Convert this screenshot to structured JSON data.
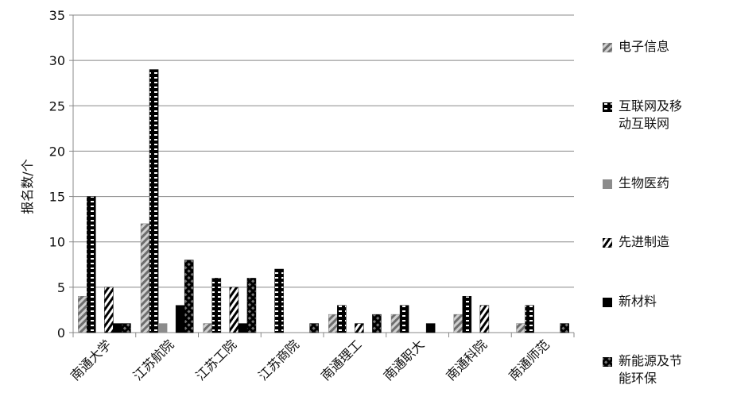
{
  "chart_data": {
    "type": "bar",
    "y_label": "报名数/个",
    "categories": [
      "南通大学",
      "江苏航院",
      "江苏工院",
      "江苏商院",
      "南通理工",
      "南通职大",
      "南通科院",
      "南通师范"
    ],
    "series": [
      {
        "name": "电子信息",
        "color": "#7a7a7a",
        "values": [
          4,
          12,
          1,
          0,
          2,
          2,
          2,
          1
        ]
      },
      {
        "name": "互联网及移动互联网",
        "color": "#000000",
        "values": [
          15,
          29,
          6,
          7,
          3,
          3,
          4,
          3
        ]
      },
      {
        "name": "生物医药",
        "color": "#8c8c8c",
        "values": [
          0,
          1,
          0,
          0,
          0,
          0,
          0,
          0
        ]
      },
      {
        "name": "先进制造",
        "color": "#000000",
        "values": [
          5,
          0,
          5,
          0,
          1,
          0,
          3,
          0
        ]
      },
      {
        "name": "新材料",
        "color": "#000000",
        "values": [
          1,
          3,
          1,
          0,
          0,
          1,
          0,
          0
        ]
      },
      {
        "name": "新能源及节能环保",
        "color": "#000000",
        "values": [
          1,
          8,
          6,
          1,
          2,
          0,
          0,
          1
        ]
      }
    ],
    "ylim": [
      0,
      35
    ],
    "yticks": [
      0,
      5,
      10,
      15,
      20,
      25,
      30,
      35
    ],
    "grid": true,
    "legend": "right"
  }
}
